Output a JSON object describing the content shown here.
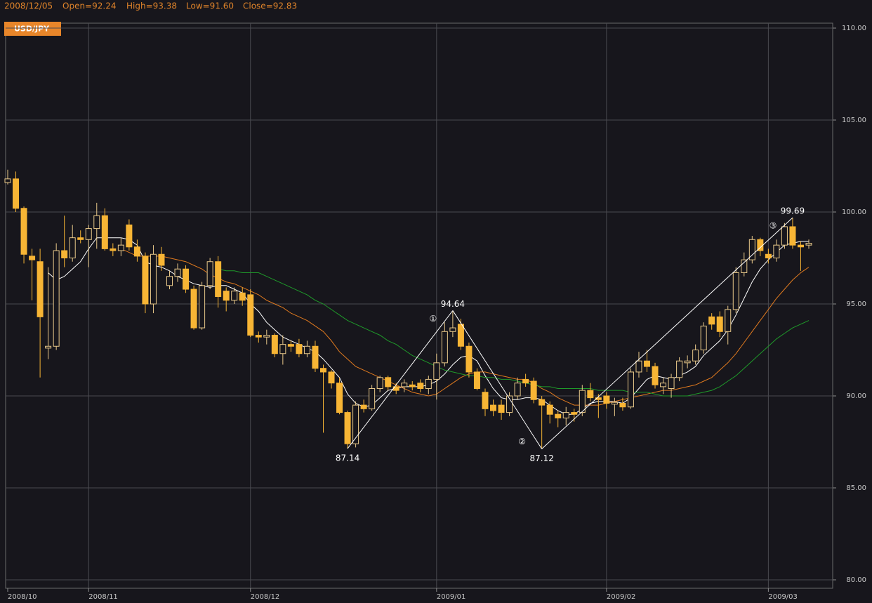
{
  "chart_data": {
    "type": "candlestick",
    "info": [
      "2008/12/05",
      "Open=92.24",
      "High=93.38",
      "Low=91.60",
      "Close=92.83"
    ],
    "symbol": "USD/JPY",
    "categories": [
      "2008/10",
      null,
      null,
      null,
      null,
      null,
      null,
      null,
      null,
      null,
      "2008/11",
      null,
      null,
      null,
      null,
      null,
      null,
      null,
      null,
      null,
      null,
      null,
      null,
      null,
      null,
      null,
      null,
      null,
      null,
      null,
      "2008/12",
      null,
      null,
      null,
      null,
      null,
      null,
      null,
      null,
      null,
      null,
      null,
      null,
      null,
      null,
      null,
      null,
      null,
      null,
      null,
      null,
      null,
      null,
      "2009/01",
      null,
      null,
      null,
      null,
      null,
      null,
      null,
      null,
      null,
      null,
      null,
      null,
      null,
      null,
      null,
      null,
      null,
      null,
      null,
      null,
      "2009/02",
      null,
      null,
      null,
      null,
      null,
      null,
      null,
      null,
      null,
      null,
      null,
      null,
      null,
      null,
      null,
      null,
      null,
      null,
      null,
      "2009/03",
      null,
      null,
      null,
      null,
      null
    ],
    "open": [
      101.6,
      101.8,
      100.2,
      97.6,
      97.3,
      92.6,
      92.7,
      97.9,
      97.5,
      98.6,
      98.5,
      99.1,
      99.8,
      98.0,
      97.9,
      99.3,
      98.1,
      97.6,
      95.0,
      97.7,
      96.0,
      96.5,
      96.9,
      95.8,
      93.7,
      96.0,
      97.3,
      95.7,
      95.2,
      95.6,
      95.5,
      93.3,
      93.2,
      93.3,
      92.3,
      92.8,
      92.8,
      92.3,
      92.7,
      91.5,
      91.3,
      90.7,
      89.1,
      87.4,
      89.5,
      89.3,
      90.4,
      91.0,
      90.5,
      90.5,
      90.6,
      90.7,
      90.4,
      90.9,
      91.8,
      93.5,
      93.9,
      92.7,
      91.3,
      90.2,
      89.5,
      89.5,
      89.1,
      90.0,
      90.9,
      90.8,
      89.8,
      89.5,
      89.0,
      88.8,
      89.1,
      89.1,
      90.3,
      89.9,
      90.0,
      89.55,
      89.6,
      89.4,
      91.3,
      91.9,
      91.6,
      90.5,
      90.4,
      91.0,
      91.8,
      91.9,
      92.5,
      94.3,
      94.3,
      93.5,
      94.7,
      96.7,
      97.4,
      98.5,
      97.7,
      97.5,
      98.2,
      99.2,
      98.2,
      98.2
    ],
    "high": [
      102.3,
      102.2,
      100.3,
      98.0,
      98.0,
      97.0,
      98.3,
      99.8,
      99.3,
      99.0,
      99.3,
      100.5,
      100.2,
      98.3,
      98.6,
      99.6,
      98.5,
      97.8,
      98.2,
      98.1,
      96.8,
      97.2,
      97.1,
      96.0,
      96.2,
      97.5,
      97.6,
      95.9,
      95.9,
      95.9,
      95.8,
      93.5,
      93.6,
      93.4,
      93.3,
      93.0,
      93.1,
      93.0,
      93.0,
      91.7,
      91.4,
      91.0,
      89.2,
      89.7,
      89.8,
      90.6,
      91.1,
      91.1,
      90.7,
      90.9,
      90.8,
      90.9,
      91.1,
      92.3,
      94.0,
      94.64,
      94.2,
      92.9,
      91.5,
      90.4,
      89.8,
      89.8,
      90.2,
      91.0,
      91.2,
      91.0,
      90.0,
      89.7,
      89.2,
      89.4,
      89.3,
      90.6,
      90.7,
      90.1,
      90.2,
      89.9,
      89.9,
      91.5,
      92.4,
      92.5,
      91.8,
      91.0,
      91.2,
      92.1,
      92.2,
      92.8,
      94.0,
      94.5,
      94.6,
      94.9,
      97.0,
      97.8,
      98.7,
      98.6,
      98.0,
      98.5,
      99.4,
      99.69,
      98.4,
      98.5
    ],
    "low": [
      101.5,
      100.0,
      97.2,
      95.2,
      91.0,
      92.0,
      92.5,
      97.0,
      97.3,
      98.3,
      97.0,
      98.0,
      97.9,
      97.6,
      97.6,
      97.9,
      97.3,
      94.5,
      94.5,
      96.8,
      95.8,
      96.2,
      95.6,
      93.6,
      93.6,
      95.8,
      94.8,
      94.6,
      95.0,
      94.9,
      93.2,
      92.9,
      92.8,
      92.1,
      91.7,
      92.4,
      92.1,
      92.1,
      91.3,
      88.0,
      90.4,
      89.0,
      87.14,
      87.2,
      89.1,
      89.2,
      90.2,
      90.3,
      90.1,
      90.2,
      90.3,
      90.2,
      90.1,
      89.8,
      91.6,
      93.2,
      92.5,
      91.0,
      90.3,
      88.9,
      88.9,
      88.7,
      88.9,
      89.8,
      90.5,
      89.6,
      87.12,
      88.5,
      88.3,
      88.4,
      88.6,
      88.9,
      89.7,
      88.8,
      89.3,
      88.9,
      89.2,
      89.3,
      91.0,
      91.3,
      90.4,
      90.1,
      89.9,
      90.8,
      91.5,
      91.7,
      92.3,
      93.6,
      93.2,
      92.8,
      94.5,
      96.5,
      97.2,
      97.6,
      97.2,
      97.3,
      98.0,
      98.0,
      96.8,
      98.0
    ],
    "close": [
      101.8,
      100.2,
      97.7,
      97.4,
      94.3,
      92.7,
      97.9,
      97.5,
      98.6,
      98.5,
      99.1,
      99.8,
      98.0,
      97.9,
      98.2,
      98.1,
      97.6,
      95.0,
      97.7,
      97.1,
      96.5,
      96.9,
      95.8,
      93.7,
      96.0,
      97.3,
      95.4,
      95.2,
      95.7,
      95.2,
      93.3,
      93.2,
      93.3,
      92.3,
      92.8,
      92.7,
      92.3,
      92.7,
      91.5,
      91.3,
      90.7,
      89.1,
      87.4,
      89.5,
      89.3,
      90.4,
      91.0,
      90.5,
      90.3,
      90.7,
      90.5,
      90.4,
      90.9,
      91.8,
      93.5,
      93.7,
      92.7,
      91.3,
      90.4,
      89.3,
      89.2,
      89.1,
      90.0,
      90.7,
      90.7,
      89.8,
      89.5,
      89.0,
      88.8,
      89.1,
      89.0,
      90.3,
      89.9,
      89.8,
      89.6,
      89.65,
      89.4,
      91.3,
      91.9,
      91.6,
      90.6,
      90.7,
      91.0,
      91.9,
      91.9,
      92.5,
      93.8,
      93.9,
      93.5,
      94.7,
      96.7,
      97.4,
      98.5,
      97.9,
      97.5,
      98.2,
      99.2,
      98.2,
      98.1,
      98.3
    ],
    "up_color": "#e9c98a",
    "down_color": "#f7b535",
    "series": [
      {
        "color": "#ffffff",
        "values": [
          null,
          null,
          null,
          null,
          null,
          96.7,
          96.3,
          96.5,
          96.9,
          97.3,
          98.0,
          98.6,
          98.6,
          98.6,
          98.6,
          98.5,
          98.2,
          97.3,
          97.1,
          97.0,
          96.8,
          96.5,
          96.3,
          96.1,
          96.0,
          95.9,
          96.0,
          96.0,
          95.8,
          95.6,
          95.0,
          94.6,
          94.0,
          93.6,
          93.2,
          93.0,
          92.8,
          92.6,
          92.4,
          92.0,
          91.5,
          91.0,
          90.1,
          89.6,
          89.4,
          89.5,
          89.9,
          90.3,
          90.4,
          90.5,
          90.5,
          90.5,
          90.6,
          90.8,
          91.2,
          91.7,
          92.1,
          92.2,
          91.9,
          91.1,
          90.4,
          89.9,
          89.8,
          89.8,
          89.9,
          89.9,
          89.8,
          89.5,
          89.2,
          89.0,
          89.0,
          89.3,
          89.6,
          89.7,
          89.7,
          89.7,
          89.6,
          89.9,
          90.4,
          90.9,
          91.1,
          91.0,
          90.9,
          91.1,
          91.3,
          91.6,
          92.2,
          92.6,
          93.0,
          93.6,
          94.4,
          95.3,
          96.2,
          96.9,
          97.4,
          97.8,
          98.2,
          98.3,
          98.4,
          98.4
        ]
      },
      {
        "color": "#e07a1f",
        "values": [
          null,
          null,
          null,
          null,
          null,
          null,
          null,
          null,
          null,
          null,
          null,
          null,
          null,
          null,
          98.0,
          97.8,
          97.6,
          97.6,
          97.6,
          97.6,
          97.5,
          97.4,
          97.3,
          97.1,
          96.9,
          96.6,
          96.4,
          96.2,
          96.1,
          95.9,
          95.7,
          95.5,
          95.2,
          95.0,
          94.8,
          94.5,
          94.3,
          94.1,
          93.8,
          93.5,
          93.0,
          92.4,
          92.0,
          91.6,
          91.4,
          91.2,
          91.0,
          90.8,
          90.6,
          90.4,
          90.2,
          90.1,
          90.0,
          90.1,
          90.4,
          90.7,
          91.0,
          91.2,
          91.3,
          91.3,
          91.2,
          91.1,
          91.0,
          90.9,
          90.9,
          90.7,
          90.4,
          90.2,
          89.9,
          89.7,
          89.5,
          89.5,
          89.5,
          89.5,
          89.6,
          89.7,
          89.8,
          89.9,
          90.0,
          90.1,
          90.2,
          90.3,
          90.3,
          90.4,
          90.5,
          90.6,
          90.8,
          91.0,
          91.4,
          91.8,
          92.3,
          92.9,
          93.5,
          94.1,
          94.7,
          95.3,
          95.8,
          96.3,
          96.7,
          97.0
        ]
      },
      {
        "color": "#1f9a2a",
        "values": [
          null,
          null,
          null,
          null,
          null,
          null,
          null,
          null,
          null,
          null,
          null,
          null,
          null,
          null,
          null,
          null,
          null,
          null,
          null,
          null,
          null,
          null,
          null,
          null,
          null,
          null,
          96.9,
          96.8,
          96.8,
          96.7,
          96.7,
          96.7,
          96.5,
          96.3,
          96.1,
          95.9,
          95.7,
          95.5,
          95.2,
          95.0,
          94.7,
          94.4,
          94.1,
          93.9,
          93.7,
          93.5,
          93.3,
          93.0,
          92.8,
          92.5,
          92.2,
          92.0,
          91.8,
          91.6,
          91.4,
          91.3,
          91.2,
          91.1,
          91.1,
          91.0,
          91.0,
          90.9,
          90.9,
          90.8,
          90.7,
          90.6,
          90.5,
          90.5,
          90.4,
          90.4,
          90.4,
          90.4,
          90.4,
          90.3,
          90.3,
          90.3,
          90.3,
          90.2,
          90.2,
          90.2,
          90.1,
          90.0,
          90.0,
          90.0,
          90.0,
          90.1,
          90.2,
          90.3,
          90.5,
          90.8,
          91.1,
          91.5,
          91.9,
          92.3,
          92.7,
          93.1,
          93.4,
          93.7,
          93.9,
          94.1
        ]
      }
    ],
    "zigzag": {
      "color": "#ffffff",
      "values": [
        null,
        null,
        null,
        null,
        null,
        null,
        null,
        null,
        null,
        null,
        null,
        null,
        null,
        null,
        null,
        null,
        null,
        null,
        null,
        null,
        null,
        null,
        null,
        null,
        null,
        null,
        null,
        null,
        null,
        null,
        null,
        null,
        null,
        null,
        null,
        null,
        null,
        null,
        null,
        null,
        null,
        null,
        87.14,
        null,
        null,
        null,
        null,
        null,
        null,
        null,
        null,
        null,
        null,
        null,
        null,
        94.64,
        null,
        null,
        null,
        null,
        null,
        null,
        null,
        null,
        null,
        null,
        87.12,
        null,
        null,
        null,
        null,
        null,
        null,
        null,
        null,
        null,
        null,
        null,
        null,
        null,
        null,
        null,
        null,
        null,
        null,
        null,
        null,
        null,
        null,
        null,
        null,
        null,
        null,
        null,
        null,
        null,
        null,
        99.69,
        null,
        null
      ],
      "markers": [
        null,
        null,
        null,
        null,
        null,
        null,
        null,
        null,
        null,
        null,
        null,
        null,
        null,
        null,
        null,
        null,
        null,
        null,
        null,
        null,
        null,
        null,
        null,
        null,
        null,
        null,
        null,
        null,
        null,
        null,
        null,
        null,
        null,
        null,
        null,
        null,
        null,
        null,
        null,
        null,
        null,
        null,
        null,
        null,
        null,
        null,
        null,
        null,
        null,
        null,
        null,
        null,
        null,
        null,
        null,
        "①",
        null,
        null,
        null,
        null,
        null,
        null,
        null,
        null,
        null,
        null,
        "②",
        null,
        null,
        null,
        null,
        null,
        null,
        null,
        null,
        null,
        null,
        null,
        null,
        null,
        null,
        null,
        null,
        null,
        null,
        null,
        null,
        null,
        null,
        null,
        null,
        null,
        null,
        null,
        null,
        null,
        null,
        "③",
        null,
        null
      ]
    },
    "ylim": [
      80,
      110
    ],
    "yticks": [
      {
        "value": 80,
        "label": "80.00"
      },
      {
        "value": 85,
        "label": "85.00"
      },
      {
        "value": 90,
        "label": "90.00"
      },
      {
        "value": 95,
        "label": "95.00"
      },
      {
        "value": 100,
        "label": "100.00"
      },
      {
        "value": 105,
        "label": "105.00"
      },
      {
        "value": 110,
        "label": "110.00"
      }
    ],
    "grid": true
  }
}
